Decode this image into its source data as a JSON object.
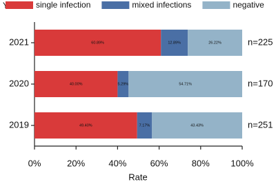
{
  "chart_data": {
    "type": "bar",
    "orientation": "horizontal",
    "stacked": true,
    "y_label": "Year",
    "x_label": "Rate",
    "categories": [
      "2021",
      "2020",
      "2019"
    ],
    "series": [
      {
        "name": "single infection",
        "color": "#d93a3a",
        "values": [
          60.89,
          40.0,
          49.4
        ],
        "value_labels": [
          "60.89%",
          "40.00%",
          "49.40%"
        ]
      },
      {
        "name": "mixed infections",
        "color": "#4a6fa5",
        "values": [
          12.89,
          5.29,
          7.17
        ],
        "value_labels": [
          "12.89%",
          "5.29%",
          "7.17%"
        ]
      },
      {
        "name": "negative",
        "color": "#94b3c8",
        "values": [
          26.22,
          54.71,
          43.43
        ],
        "value_labels": [
          "26.22%",
          "54.71%",
          "43.43%"
        ]
      }
    ],
    "annotations": [
      "n=225",
      "n=170",
      "n=251"
    ],
    "xlim": [
      0,
      100
    ],
    "xticks": [
      {
        "value": 0,
        "label": "0%"
      },
      {
        "value": 20,
        "label": "20%"
      },
      {
        "value": 40,
        "label": "40%"
      },
      {
        "value": 60,
        "label": "60%"
      },
      {
        "value": 80,
        "label": "80%"
      },
      {
        "value": 100,
        "label": "100%"
      }
    ],
    "legend": "top"
  }
}
